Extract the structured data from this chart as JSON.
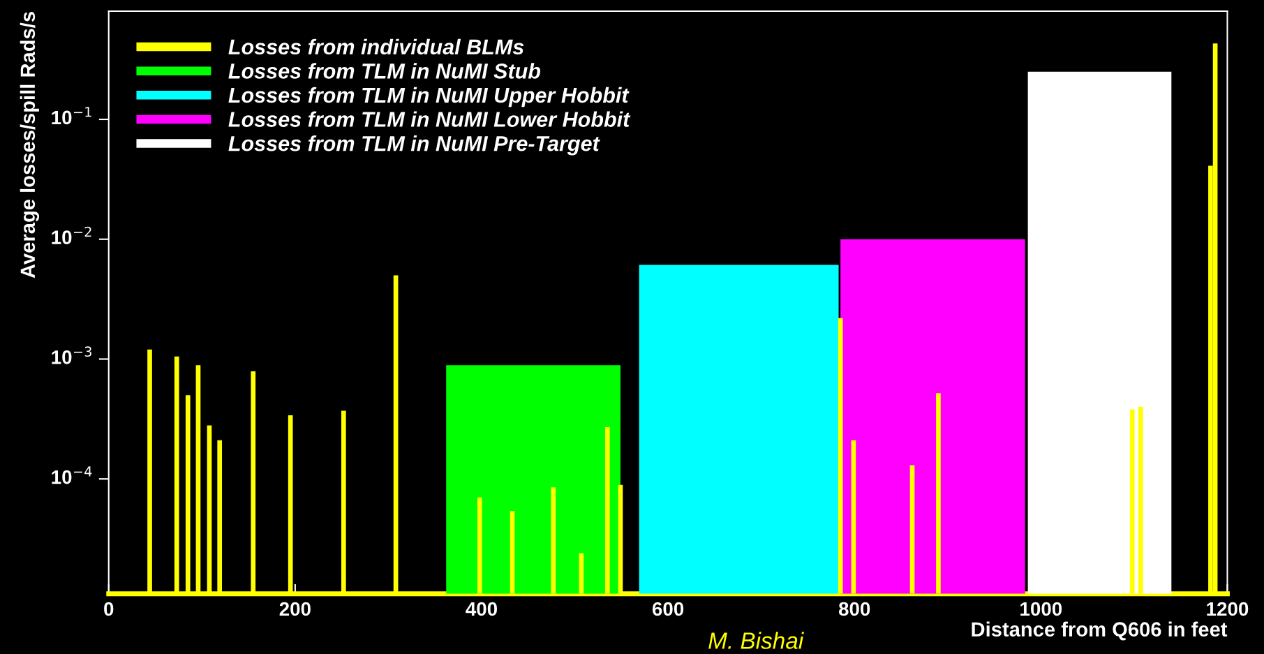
{
  "chart_data": {
    "type": "bar",
    "xlabel": "Distance from Q606 in feet",
    "ylabel": "Average losses/spill Rads/s",
    "xlim": [
      0,
      1200
    ],
    "xticks": [
      0,
      200,
      400,
      600,
      800,
      1000,
      1200
    ],
    "ylim": [
      1.1e-05,
      0.8
    ],
    "yticks": [
      {
        "value": 0.0001,
        "label": "10$^{−4}$"
      },
      {
        "value": 0.001,
        "label": "10$^{−3}$"
      },
      {
        "value": 0.01,
        "label": "10$^{−2}$"
      },
      {
        "value": 0.1,
        "label": "10$^{−1}$"
      }
    ],
    "log": true,
    "grid": false,
    "legend": "top left",
    "annotations": [
      "M. Bishai"
    ],
    "series": [
      {
        "name": "Losses from individual BLMs",
        "color": "#ffff00",
        "x": [
          44,
          73,
          85,
          96,
          108,
          119,
          155,
          195,
          252,
          308,
          398,
          433,
          477,
          507,
          535,
          549,
          785,
          799,
          862,
          890,
          1098,
          1107,
          1182,
          1187
        ],
        "values": [
          0.0012,
          0.00105,
          0.0005,
          0.00089,
          0.00028,
          0.00021,
          0.00079,
          0.00034,
          0.00037,
          0.005,
          7e-05,
          5.4e-05,
          8.5e-05,
          2.4e-05,
          0.00027,
          8.9e-05,
          0.0022,
          0.00021,
          0.00013,
          0.00052,
          0.00038,
          0.0004,
          0.041,
          0.43
        ]
      },
      {
        "name": "Losses from TLM in NuMI Stub",
        "type": "area",
        "color": "#00ff00",
        "x": [
          362,
          549
        ],
        "values": [
          0.00089,
          0.00089
        ]
      },
      {
        "name": "Losses from TLM in NuMI Upper Hobbit",
        "type": "area",
        "color": "#00ffff",
        "x": [
          569,
          783
        ],
        "values": [
          0.0061,
          0.0061
        ]
      },
      {
        "name": "Losses from TLM in NuMI Lower Hobbit",
        "type": "area",
        "color": "#ff00ff",
        "x": [
          785,
          983
        ],
        "values": [
          0.01,
          0.01
        ]
      },
      {
        "name": "Losses from TLM in NuMI Pre-Target",
        "type": "area",
        "color": "#ffffff",
        "x": [
          986,
          1140
        ],
        "values": [
          0.25,
          0.25
        ]
      }
    ]
  }
}
